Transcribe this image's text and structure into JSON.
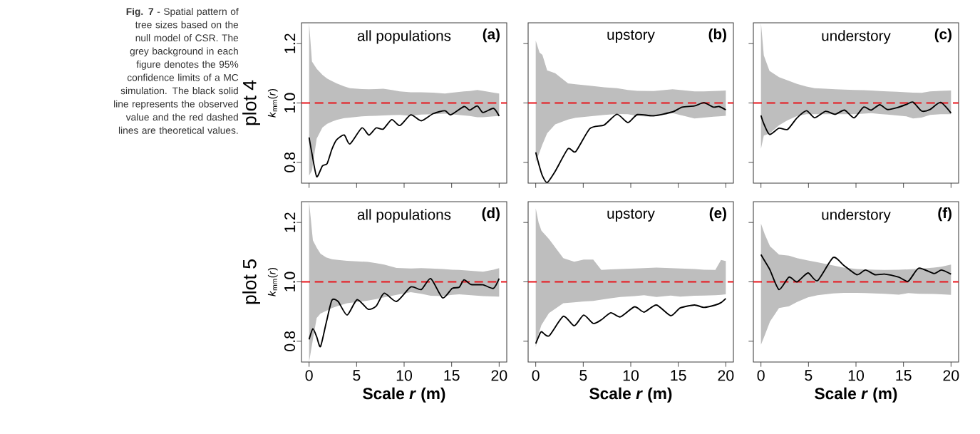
{
  "chart_data": [
    {
      "type": "line",
      "title": "all populations",
      "ylabel": "*k*$_{mm}$(*r*)",
      "annotations": [
        "(a)",
        "plot 4",
        "**Fig. 7** - Spatial pattern of tree sizes based on the null model of CSR. The grey background in each figure denotes the 95% confidence limits of a MC simulation. The black solid line represents the observed value and the red dashed lines are theoretical values."
      ],
      "xlim": [
        -0.8,
        20.8
      ],
      "ylim": [
        0.73,
        1.27
      ],
      "xticks": [
        0,
        5,
        10,
        15,
        20
      ],
      "yticks": [
        {
          "value": 0.8,
          "label": "0.8"
        },
        {
          "value": 1.0,
          "label": "1.0"
        },
        {
          "value": 1.2,
          "label": "1.2"
        }
      ],
      "tick_labels": "y",
      "ref_lines": [
        {
          "axis": "y",
          "value": 1.0,
          "color": "#e8141b",
          "line_style": "dashed"
        }
      ],
      "series": [
        {
          "color": "#000000",
          "x": [
            0,
            0.3,
            0.8,
            1.4,
            1.9,
            2.4,
            2.9,
            3.7,
            4.3,
            5.55,
            6.3,
            7.05,
            7.8,
            8.7,
            9.55,
            10.7,
            11.8,
            13.05,
            14.3,
            14.9,
            16.3,
            16.9,
            17.7,
            18.3,
            19.4,
            20
          ],
          "values": [
            0.884,
            0.83,
            0.752,
            0.788,
            0.796,
            0.844,
            0.876,
            0.892,
            0.862,
            0.916,
            0.892,
            0.916,
            0.912,
            0.944,
            0.924,
            0.96,
            0.94,
            0.964,
            0.974,
            0.96,
            0.988,
            0.976,
            0.99,
            0.968,
            0.982,
            0.956
          ],
          "upper": [
            1.27,
            1.14,
            1.115,
            1.095,
            1.082,
            1.074,
            1.066,
            1.056,
            1.05,
            1.047,
            1.046,
            1.047,
            1.048,
            1.044,
            1.039,
            1.036,
            1.036,
            1.035,
            1.032,
            1.034,
            1.039,
            1.04,
            1.044,
            1.041,
            1.035,
            1.032
          ],
          "lower": [
            0.756,
            0.772,
            0.88,
            0.917,
            0.93,
            0.937,
            0.943,
            0.949,
            0.951,
            0.955,
            0.956,
            0.957,
            0.958,
            0.959,
            0.96,
            0.957,
            0.961,
            0.962,
            0.964,
            0.962,
            0.958,
            0.956,
            0.952,
            0.952,
            0.955,
            0.956
          ]
        }
      ]
    },
    {
      "type": "line",
      "title": "upstory",
      "annotations": [
        "(b)"
      ],
      "xlim": [
        -0.8,
        20.8
      ],
      "ylim": [
        0.73,
        1.27
      ],
      "xticks": [
        0,
        5,
        10,
        15,
        20
      ],
      "yticks": [
        0.8,
        1.0,
        1.2
      ],
      "tick_labels": false,
      "ref_lines": [
        {
          "axis": "y",
          "value": 1.0,
          "color": "#e8141b",
          "line_style": "dashed"
        }
      ],
      "series": [
        {
          "color": "#000000",
          "x": [
            0,
            0.4,
            0.7,
            1.2,
            2.05,
            3.4,
            4.2,
            5.7,
            7.2,
            8.55,
            9.7,
            10.7,
            12.4,
            14.4,
            15.4,
            16.7,
            17.7,
            18.7,
            19.3,
            20
          ],
          "values": [
            0.834,
            0.785,
            0.755,
            0.732,
            0.77,
            0.846,
            0.836,
            0.914,
            0.926,
            0.962,
            0.934,
            0.961,
            0.957,
            0.97,
            0.986,
            0.99,
            1.001,
            0.986,
            0.988,
            0.977
          ],
          "upper": [
            1.21,
            1.17,
            1.162,
            1.11,
            1.1,
            1.066,
            1.063,
            1.058,
            1.053,
            1.05,
            1.044,
            1.041,
            1.04,
            1.046,
            1.043,
            1.039,
            1.039,
            1.04,
            1.041,
            1.042
          ],
          "lower": [
            0.802,
            0.834,
            0.86,
            0.898,
            0.928,
            0.944,
            0.95,
            0.955,
            0.96,
            0.963,
            0.962,
            0.956,
            0.953,
            0.966,
            0.958,
            0.948,
            0.951,
            0.954,
            0.955,
            0.957
          ]
        }
      ]
    },
    {
      "type": "line",
      "title": "understory",
      "annotations": [
        "(c)"
      ],
      "xlim": [
        -0.8,
        20.8
      ],
      "ylim": [
        0.73,
        1.27
      ],
      "xticks": [
        0,
        5,
        10,
        15,
        20
      ],
      "yticks": [
        0.8,
        1.0,
        1.2
      ],
      "tick_labels": false,
      "ref_lines": [
        {
          "axis": "y",
          "value": 1.0,
          "color": "#e8141b",
          "line_style": "dashed"
        }
      ],
      "series": [
        {
          "color": "#000000",
          "x": [
            0,
            0.3,
            0.9,
            1.9,
            2.8,
            3.8,
            4.8,
            5.65,
            6.8,
            7.8,
            8.8,
            9.8,
            10.8,
            11.6,
            12.5,
            13.3,
            14.3,
            15.3,
            16.0,
            16.9,
            17.8,
            18.9,
            20
          ],
          "values": [
            0.958,
            0.93,
            0.894,
            0.915,
            0.911,
            0.95,
            0.974,
            0.95,
            0.972,
            0.962,
            0.976,
            0.95,
            0.986,
            0.976,
            0.994,
            0.978,
            0.984,
            0.995,
            1.003,
            0.973,
            0.978,
            1.002,
            0.966
          ],
          "upper": [
            1.27,
            1.16,
            1.108,
            1.087,
            1.076,
            1.064,
            1.055,
            1.05,
            1.048,
            1.046,
            1.045,
            1.044,
            1.043,
            1.042,
            1.04,
            1.039,
            1.038,
            1.036,
            1.035,
            1.034,
            1.039,
            1.041,
            1.042
          ],
          "lower": [
            0.846,
            0.89,
            0.897,
            0.925,
            0.942,
            0.956,
            0.962,
            0.962,
            0.962,
            0.962,
            0.962,
            0.962,
            0.964,
            0.966,
            0.963,
            0.961,
            0.958,
            0.955,
            0.948,
            0.951,
            0.96,
            0.962,
            0.962
          ]
        }
      ]
    },
    {
      "type": "line",
      "title": "all populations",
      "xlabel": "**Scale *r* (m)**",
      "ylabel": "*k*$_{mm}$(*r*)",
      "annotations": [
        "(d)",
        "plot 5"
      ],
      "xlim": [
        -0.8,
        20.8
      ],
      "ylim": [
        0.73,
        1.27
      ],
      "xticks": [
        0,
        5,
        10,
        15,
        20
      ],
      "yticks": [
        {
          "value": 0.8,
          "label": "0.8"
        },
        {
          "value": 1.0,
          "label": "1.0"
        },
        {
          "value": 1.2,
          "label": "1.2"
        }
      ],
      "ref_lines": [
        {
          "axis": "y",
          "value": 1.0,
          "color": "#e8141b",
          "line_style": "dashed"
        }
      ],
      "series": [
        {
          "color": "#000000",
          "x": [
            0,
            0.4,
            0.8,
            1.2,
            1.8,
            2.4,
            3.05,
            4.0,
            5.05,
            6.2,
            7.05,
            7.9,
            9.2,
            10.7,
            11.8,
            12.8,
            14.05,
            15.05,
            15.8,
            16.3,
            17.05,
            18.3,
            19.4,
            20
          ],
          "values": [
            0.806,
            0.842,
            0.815,
            0.782,
            0.862,
            0.938,
            0.934,
            0.888,
            0.94,
            0.908,
            0.918,
            0.962,
            0.934,
            0.983,
            0.974,
            1.011,
            0.946,
            0.978,
            0.982,
            1.007,
            0.991,
            0.99,
            0.978,
            1.011
          ],
          "upper": [
            1.27,
            1.14,
            1.115,
            1.095,
            1.082,
            1.076,
            1.074,
            1.071,
            1.069,
            1.067,
            1.063,
            1.058,
            1.047,
            1.045,
            1.046,
            1.045,
            1.043,
            1.041,
            1.04,
            1.039,
            1.037,
            1.034,
            1.041,
            1.046
          ],
          "lower": [
            0.73,
            0.806,
            0.878,
            0.893,
            0.902,
            0.912,
            0.919,
            0.928,
            0.932,
            0.937,
            0.942,
            0.948,
            0.956,
            0.965,
            0.96,
            0.953,
            0.952,
            0.956,
            0.958,
            0.957,
            0.955,
            0.952,
            0.951,
            0.95
          ]
        }
      ]
    },
    {
      "type": "line",
      "title": "upstory",
      "xlabel": "**Scale *r* (m)**",
      "annotations": [
        "(e)"
      ],
      "xlim": [
        -0.8,
        20.8
      ],
      "ylim": [
        0.73,
        1.27
      ],
      "xticks": [
        0,
        5,
        10,
        15,
        20
      ],
      "yticks": [
        0.8,
        1.0,
        1.2
      ],
      "tick_labels": "x",
      "ref_lines": [
        {
          "axis": "y",
          "value": 1.0,
          "color": "#e8141b",
          "line_style": "dashed"
        }
      ],
      "series": [
        {
          "color": "#000000",
          "x": [
            0,
            0.3,
            0.6,
            1.4,
            2.9,
            4.05,
            5.05,
            6.05,
            6.9,
            7.9,
            8.9,
            10.4,
            11.4,
            12.7,
            14.2,
            15.2,
            16.7,
            17.7,
            18.9,
            19.5,
            20
          ],
          "values": [
            0.792,
            0.815,
            0.832,
            0.818,
            0.884,
            0.852,
            0.888,
            0.86,
            0.872,
            0.896,
            0.882,
            0.916,
            0.898,
            0.922,
            0.886,
            0.912,
            0.922,
            0.914,
            0.922,
            0.93,
            0.944
          ],
          "upper": [
            1.248,
            1.2,
            1.172,
            1.144,
            1.08,
            1.068,
            1.075,
            1.075,
            1.04,
            1.042,
            1.043,
            1.045,
            1.046,
            1.048,
            1.046,
            1.045,
            1.043,
            1.041,
            1.04,
            1.074,
            1.07
          ],
          "lower": [
            0.78,
            0.825,
            0.855,
            0.895,
            0.928,
            0.931,
            0.934,
            0.936,
            0.94,
            0.945,
            0.949,
            0.952,
            0.955,
            0.949,
            0.954,
            0.95,
            0.953,
            0.954,
            0.955,
            0.956,
            0.958
          ]
        }
      ]
    },
    {
      "type": "line",
      "title": "understory",
      "xlabel": "**Scale *r* (m)**",
      "annotations": [
        "(f)"
      ],
      "xlim": [
        -0.8,
        20.8
      ],
      "ylim": [
        0.73,
        1.27
      ],
      "xticks": [
        0,
        5,
        10,
        15,
        20
      ],
      "yticks": [
        0.8,
        1.0,
        1.2
      ],
      "tick_labels": "x",
      "ref_lines": [
        {
          "axis": "y",
          "value": 1.0,
          "color": "#e8141b",
          "line_style": "dashed"
        }
      ],
      "series": [
        {
          "color": "#000000",
          "x": [
            0,
            0.4,
            0.95,
            1.9,
            2.95,
            3.8,
            4.95,
            5.95,
            7.6,
            8.7,
            10.1,
            11.0,
            12.0,
            13.0,
            14.5,
            15.5,
            16.6,
            18.2,
            19.0,
            20
          ],
          "values": [
            1.092,
            1.07,
            1.04,
            0.974,
            1.016,
            1.0,
            1.03,
            1.004,
            1.082,
            1.056,
            1.024,
            1.04,
            1.024,
            1.026,
            1.016,
            1.002,
            1.046,
            1.028,
            1.04,
            1.026
          ],
          "upper": [
            1.196,
            1.16,
            1.12,
            1.092,
            1.088,
            1.08,
            1.072,
            1.066,
            1.055,
            1.048,
            1.043,
            1.042,
            1.041,
            1.04,
            1.041,
            1.042,
            1.044,
            1.048,
            1.051,
            1.058
          ],
          "lower": [
            0.788,
            0.82,
            0.866,
            0.912,
            0.918,
            0.932,
            0.948,
            0.955,
            0.961,
            0.963,
            0.963,
            0.962,
            0.961,
            0.96,
            0.957,
            0.962,
            0.96,
            0.959,
            0.958,
            0.956
          ]
        }
      ]
    }
  ]
}
